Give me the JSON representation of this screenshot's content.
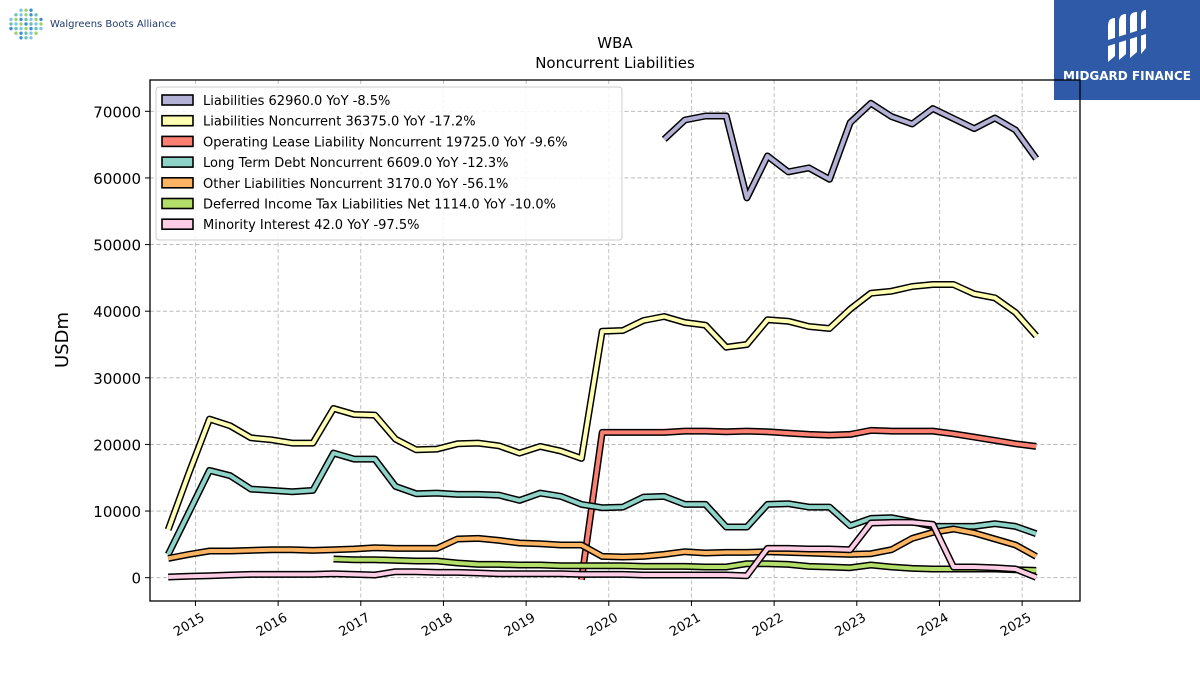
{
  "header": {
    "brand_name": "Walgreens Boots Alliance",
    "badge_name": "MIDGARD FINANCE",
    "brand_icon": "dotted-globe-icon",
    "badge_icon": "stylized-m-icon"
  },
  "chart_data": {
    "type": "line",
    "title": "WBA",
    "subtitle": "Noncurrent  Liabilities",
    "ylabel": "USDm",
    "xlabel": "",
    "xlim": [
      2014.45,
      2025.7
    ],
    "ylim": [
      -3500,
      74700
    ],
    "yticks": [
      0,
      10000,
      20000,
      30000,
      40000,
      50000,
      60000,
      70000
    ],
    "ytick_labels": [
      "0",
      "10000",
      "20000",
      "30000",
      "40000",
      "50000",
      "60000",
      "70000"
    ],
    "xticks": [
      2015,
      2016,
      2017,
      2018,
      2019,
      2020,
      2021,
      2022,
      2023,
      2024,
      2025
    ],
    "xtick_labels": [
      "2015",
      "2016",
      "2017",
      "2018",
      "2019",
      "2020",
      "2021",
      "2022",
      "2023",
      "2024",
      "2025"
    ],
    "grid": true,
    "legend_position": "top-left",
    "series": [
      {
        "name": "Liabilities  62960.0 YoY -8.5%",
        "color": "#b3b1d5",
        "points": [
          [
            2020.67,
            65800
          ],
          [
            2020.92,
            68700
          ],
          [
            2021.17,
            69300
          ],
          [
            2021.42,
            69300
          ],
          [
            2021.67,
            57000
          ],
          [
            2021.92,
            63300
          ],
          [
            2022.17,
            60900
          ],
          [
            2022.42,
            61500
          ],
          [
            2022.67,
            59800
          ],
          [
            2022.92,
            68300
          ],
          [
            2023.17,
            71200
          ],
          [
            2023.42,
            69200
          ],
          [
            2023.67,
            68100
          ],
          [
            2023.92,
            70400
          ],
          [
            2024.17,
            68900
          ],
          [
            2024.42,
            67400
          ],
          [
            2024.67,
            69000
          ],
          [
            2024.92,
            67200
          ],
          [
            2025.17,
            62900
          ]
        ]
      },
      {
        "name": "Liabilities Noncurrent  36375.0 YoY -17.2%",
        "color": "#ffffb3",
        "points": [
          [
            2014.67,
            7200
          ],
          [
            2014.92,
            15700
          ],
          [
            2015.17,
            23800
          ],
          [
            2015.42,
            22800
          ],
          [
            2015.67,
            21000
          ],
          [
            2015.92,
            20700
          ],
          [
            2016.17,
            20200
          ],
          [
            2016.42,
            20200
          ],
          [
            2016.67,
            25400
          ],
          [
            2016.92,
            24500
          ],
          [
            2017.17,
            24400
          ],
          [
            2017.42,
            20800
          ],
          [
            2017.67,
            19200
          ],
          [
            2017.92,
            19300
          ],
          [
            2018.17,
            20100
          ],
          [
            2018.42,
            20200
          ],
          [
            2018.67,
            19800
          ],
          [
            2018.92,
            18700
          ],
          [
            2019.17,
            19700
          ],
          [
            2019.42,
            19000
          ],
          [
            2019.67,
            17900
          ],
          [
            2019.92,
            37000
          ],
          [
            2020.17,
            37100
          ],
          [
            2020.42,
            38600
          ],
          [
            2020.67,
            39200
          ],
          [
            2020.92,
            38300
          ],
          [
            2021.17,
            37900
          ],
          [
            2021.42,
            34600
          ],
          [
            2021.67,
            35000
          ],
          [
            2021.92,
            38700
          ],
          [
            2022.17,
            38500
          ],
          [
            2022.42,
            37700
          ],
          [
            2022.67,
            37400
          ],
          [
            2022.92,
            40300
          ],
          [
            2023.17,
            42700
          ],
          [
            2023.42,
            43000
          ],
          [
            2023.67,
            43700
          ],
          [
            2023.92,
            44000
          ],
          [
            2024.17,
            44000
          ],
          [
            2024.42,
            42600
          ],
          [
            2024.67,
            42000
          ],
          [
            2024.92,
            39800
          ],
          [
            2025.17,
            36300
          ]
        ]
      },
      {
        "name": "Operating Lease Liability Noncurrent  19725.0 YoY -9.6%",
        "color": "#fb8072",
        "points": [
          [
            2019.67,
            -300
          ],
          [
            2019.92,
            21800
          ],
          [
            2020.17,
            21800
          ],
          [
            2020.42,
            21800
          ],
          [
            2020.67,
            21800
          ],
          [
            2020.92,
            22000
          ],
          [
            2021.17,
            22000
          ],
          [
            2021.42,
            21900
          ],
          [
            2021.67,
            22000
          ],
          [
            2021.92,
            21900
          ],
          [
            2022.17,
            21700
          ],
          [
            2022.42,
            21500
          ],
          [
            2022.67,
            21400
          ],
          [
            2022.92,
            21500
          ],
          [
            2023.17,
            22100
          ],
          [
            2023.42,
            22000
          ],
          [
            2023.67,
            22000
          ],
          [
            2023.92,
            22000
          ],
          [
            2024.17,
            21600
          ],
          [
            2024.42,
            21100
          ],
          [
            2024.67,
            20600
          ],
          [
            2024.92,
            20100
          ],
          [
            2025.17,
            19700
          ]
        ]
      },
      {
        "name": "Long Term Debt Noncurrent  6609.0 YoY -12.3%",
        "color": "#8dd3c7",
        "points": [
          [
            2014.67,
            3500
          ],
          [
            2014.92,
            9800
          ],
          [
            2015.17,
            16100
          ],
          [
            2015.42,
            15300
          ],
          [
            2015.67,
            13300
          ],
          [
            2015.92,
            13100
          ],
          [
            2016.17,
            12900
          ],
          [
            2016.42,
            13100
          ],
          [
            2016.67,
            18700
          ],
          [
            2016.92,
            17800
          ],
          [
            2017.17,
            17800
          ],
          [
            2017.42,
            13700
          ],
          [
            2017.67,
            12600
          ],
          [
            2017.92,
            12700
          ],
          [
            2018.17,
            12500
          ],
          [
            2018.42,
            12500
          ],
          [
            2018.67,
            12400
          ],
          [
            2018.92,
            11600
          ],
          [
            2019.17,
            12700
          ],
          [
            2019.42,
            12200
          ],
          [
            2019.67,
            11000
          ],
          [
            2019.92,
            10500
          ],
          [
            2020.17,
            10600
          ],
          [
            2020.42,
            12100
          ],
          [
            2020.67,
            12200
          ],
          [
            2020.92,
            11000
          ],
          [
            2021.17,
            11000
          ],
          [
            2021.42,
            7600
          ],
          [
            2021.67,
            7600
          ],
          [
            2021.92,
            11000
          ],
          [
            2022.17,
            11100
          ],
          [
            2022.42,
            10600
          ],
          [
            2022.67,
            10600
          ],
          [
            2022.92,
            7800
          ],
          [
            2023.17,
            8900
          ],
          [
            2023.42,
            9000
          ],
          [
            2023.67,
            8400
          ],
          [
            2023.92,
            7700
          ],
          [
            2024.17,
            7700
          ],
          [
            2024.42,
            7700
          ],
          [
            2024.67,
            8100
          ],
          [
            2024.92,
            7700
          ],
          [
            2025.17,
            6600
          ]
        ]
      },
      {
        "name": "Other Liabilities Noncurrent  3170.0 YoY -56.1%",
        "color": "#fdb462",
        "points": [
          [
            2014.67,
            2900
          ],
          [
            2014.92,
            3500
          ],
          [
            2015.17,
            4000
          ],
          [
            2015.42,
            4000
          ],
          [
            2015.67,
            4100
          ],
          [
            2015.92,
            4200
          ],
          [
            2016.17,
            4200
          ],
          [
            2016.42,
            4100
          ],
          [
            2016.67,
            4200
          ],
          [
            2016.92,
            4300
          ],
          [
            2017.17,
            4500
          ],
          [
            2017.42,
            4400
          ],
          [
            2017.67,
            4400
          ],
          [
            2017.92,
            4400
          ],
          [
            2018.17,
            5800
          ],
          [
            2018.42,
            5900
          ],
          [
            2018.67,
            5600
          ],
          [
            2018.92,
            5200
          ],
          [
            2019.17,
            5100
          ],
          [
            2019.42,
            4900
          ],
          [
            2019.67,
            4900
          ],
          [
            2019.92,
            3200
          ],
          [
            2020.17,
            3100
          ],
          [
            2020.42,
            3200
          ],
          [
            2020.67,
            3500
          ],
          [
            2020.92,
            3900
          ],
          [
            2021.17,
            3700
          ],
          [
            2021.42,
            3800
          ],
          [
            2021.67,
            3800
          ],
          [
            2021.92,
            3900
          ],
          [
            2022.17,
            3800
          ],
          [
            2022.42,
            3700
          ],
          [
            2022.67,
            3600
          ],
          [
            2022.92,
            3500
          ],
          [
            2023.17,
            3600
          ],
          [
            2023.42,
            4200
          ],
          [
            2023.67,
            5900
          ],
          [
            2023.92,
            6800
          ],
          [
            2024.17,
            7300
          ],
          [
            2024.42,
            6700
          ],
          [
            2024.67,
            5800
          ],
          [
            2024.92,
            4900
          ],
          [
            2025.17,
            3200
          ]
        ]
      },
      {
        "name": "Deferred Income Tax Liabilities Net  1114.0 YoY -10.0%",
        "color": "#b3de69",
        "points": [
          [
            2016.67,
            2800
          ],
          [
            2016.92,
            2700
          ],
          [
            2017.17,
            2700
          ],
          [
            2017.42,
            2600
          ],
          [
            2017.67,
            2500
          ],
          [
            2017.92,
            2500
          ],
          [
            2018.17,
            2200
          ],
          [
            2018.42,
            2000
          ],
          [
            2018.67,
            2000
          ],
          [
            2018.92,
            1900
          ],
          [
            2019.17,
            1900
          ],
          [
            2019.42,
            1800
          ],
          [
            2019.67,
            1800
          ],
          [
            2019.92,
            1800
          ],
          [
            2020.17,
            1800
          ],
          [
            2020.42,
            1700
          ],
          [
            2020.67,
            1700
          ],
          [
            2020.92,
            1700
          ],
          [
            2021.17,
            1600
          ],
          [
            2021.42,
            1600
          ],
          [
            2021.67,
            2100
          ],
          [
            2021.92,
            2100
          ],
          [
            2022.17,
            2000
          ],
          [
            2022.42,
            1700
          ],
          [
            2022.67,
            1600
          ],
          [
            2022.92,
            1500
          ],
          [
            2023.17,
            1900
          ],
          [
            2023.42,
            1600
          ],
          [
            2023.67,
            1400
          ],
          [
            2023.92,
            1300
          ],
          [
            2024.17,
            1300
          ],
          [
            2024.42,
            1300
          ],
          [
            2024.67,
            1300
          ],
          [
            2024.92,
            1200
          ],
          [
            2025.17,
            1100
          ]
        ]
      },
      {
        "name": "Minority Interest  42.0 YoY -97.5%",
        "color": "#fccde5",
        "points": [
          [
            2014.67,
            100
          ],
          [
            2014.92,
            200
          ],
          [
            2015.17,
            300
          ],
          [
            2015.42,
            400
          ],
          [
            2015.67,
            500
          ],
          [
            2015.92,
            500
          ],
          [
            2016.17,
            500
          ],
          [
            2016.42,
            500
          ],
          [
            2016.67,
            600
          ],
          [
            2016.92,
            500
          ],
          [
            2017.17,
            400
          ],
          [
            2017.42,
            900
          ],
          [
            2017.67,
            900
          ],
          [
            2017.92,
            800
          ],
          [
            2018.17,
            800
          ],
          [
            2018.42,
            700
          ],
          [
            2018.67,
            600
          ],
          [
            2018.92,
            600
          ],
          [
            2019.17,
            600
          ],
          [
            2019.42,
            600
          ],
          [
            2019.67,
            500
          ],
          [
            2019.92,
            500
          ],
          [
            2020.17,
            500
          ],
          [
            2020.42,
            400
          ],
          [
            2020.67,
            400
          ],
          [
            2020.92,
            400
          ],
          [
            2021.17,
            400
          ],
          [
            2021.42,
            400
          ],
          [
            2021.67,
            300
          ],
          [
            2021.92,
            4400
          ],
          [
            2022.17,
            4400
          ],
          [
            2022.42,
            4300
          ],
          [
            2022.67,
            4300
          ],
          [
            2022.92,
            4200
          ],
          [
            2023.17,
            8200
          ],
          [
            2023.42,
            8300
          ],
          [
            2023.67,
            8300
          ],
          [
            2023.92,
            8000
          ],
          [
            2024.17,
            1600
          ],
          [
            2024.42,
            1600
          ],
          [
            2024.67,
            1500
          ],
          [
            2024.92,
            1300
          ],
          [
            2025.17,
            40
          ]
        ]
      }
    ]
  }
}
